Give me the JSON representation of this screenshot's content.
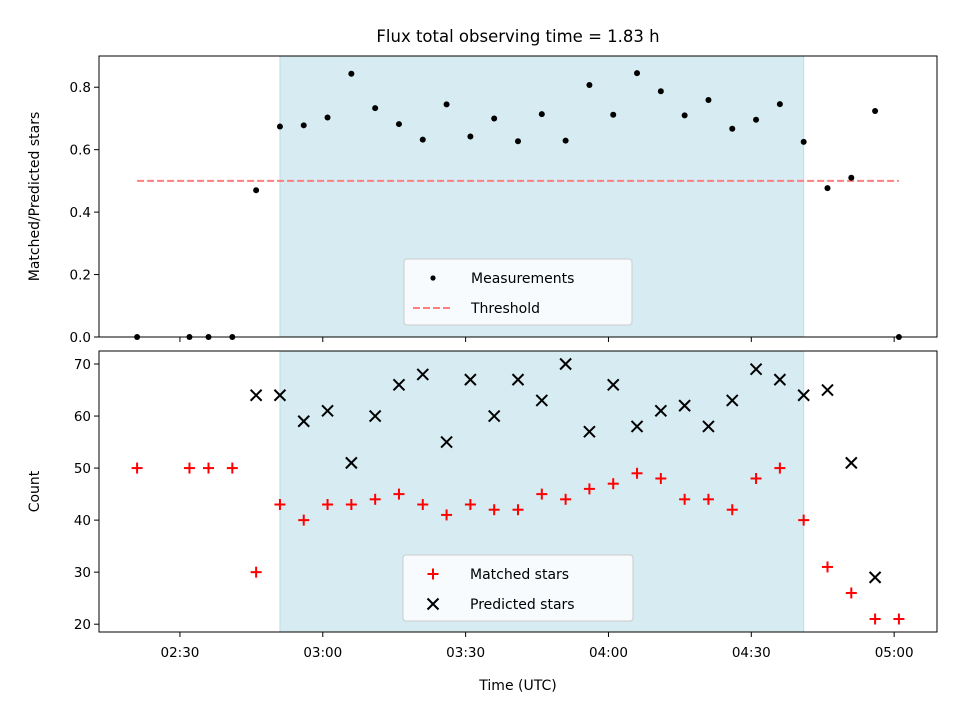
{
  "title": "Flux total observing time = 1.83 h",
  "xlabel": "Time (UTC)",
  "x_ticks": [
    "02:30",
    "03:00",
    "03:30",
    "04:00",
    "04:30",
    "05:00"
  ],
  "colors": {
    "shade": "#add8e6",
    "measurement": "#000000",
    "threshold": "#ff7f7f",
    "matched": "#ff0000",
    "predicted": "#000000"
  },
  "chart_data": [
    {
      "type": "scatter",
      "ylabel": "Matched/Predicted stars",
      "xlim": [
        "02:13",
        "05:09"
      ],
      "ylim": [
        0,
        0.9
      ],
      "y_ticks": [
        "0.0",
        "0.2",
        "0.4",
        "0.6",
        "0.8"
      ],
      "shaded_span": [
        "02:51",
        "04:41"
      ],
      "series": [
        {
          "name": "Measurements",
          "marker": "dot",
          "points": [
            {
              "x": "02:21",
              "y": 0.0
            },
            {
              "x": "02:32",
              "y": 0.0
            },
            {
              "x": "02:36",
              "y": 0.0
            },
            {
              "x": "02:41",
              "y": 0.0
            },
            {
              "x": "02:46",
              "y": 0.47
            },
            {
              "x": "02:51",
              "y": 0.674
            },
            {
              "x": "02:56",
              "y": 0.678
            },
            {
              "x": "03:01",
              "y": 0.703
            },
            {
              "x": "03:06",
              "y": 0.843
            },
            {
              "x": "03:11",
              "y": 0.733
            },
            {
              "x": "03:16",
              "y": 0.682
            },
            {
              "x": "03:21",
              "y": 0.632
            },
            {
              "x": "03:26",
              "y": 0.745
            },
            {
              "x": "03:31",
              "y": 0.642
            },
            {
              "x": "03:36",
              "y": 0.7
            },
            {
              "x": "03:41",
              "y": 0.627
            },
            {
              "x": "03:46",
              "y": 0.714
            },
            {
              "x": "03:51",
              "y": 0.629
            },
            {
              "x": "03:56",
              "y": 0.807
            },
            {
              "x": "04:01",
              "y": 0.712
            },
            {
              "x": "04:06",
              "y": 0.845
            },
            {
              "x": "04:11",
              "y": 0.787
            },
            {
              "x": "04:16",
              "y": 0.71
            },
            {
              "x": "04:21",
              "y": 0.759
            },
            {
              "x": "04:26",
              "y": 0.667
            },
            {
              "x": "04:31",
              "y": 0.696
            },
            {
              "x": "04:36",
              "y": 0.746
            },
            {
              "x": "04:41",
              "y": 0.625
            },
            {
              "x": "04:46",
              "y": 0.477
            },
            {
              "x": "04:51",
              "y": 0.51
            },
            {
              "x": "04:56",
              "y": 0.724
            },
            {
              "x": "05:01",
              "y": 0.0
            }
          ]
        },
        {
          "name": "Threshold",
          "marker": "dashed-line",
          "x_range": [
            "02:21",
            "05:01"
          ],
          "y": 0.5
        }
      ],
      "legend": "lower center"
    },
    {
      "type": "scatter",
      "ylabel": "Count",
      "xlim": [
        "02:13",
        "05:09"
      ],
      "ylim": [
        18.5,
        72.5
      ],
      "y_ticks": [
        "20",
        "30",
        "40",
        "50",
        "60",
        "70"
      ],
      "shaded_span": [
        "02:51",
        "04:41"
      ],
      "series": [
        {
          "name": "Matched stars",
          "marker": "plus",
          "points": [
            {
              "x": "02:21",
              "y": 50
            },
            {
              "x": "02:32",
              "y": 50
            },
            {
              "x": "02:36",
              "y": 50
            },
            {
              "x": "02:41",
              "y": 50
            },
            {
              "x": "02:46",
              "y": 30
            },
            {
              "x": "02:51",
              "y": 43
            },
            {
              "x": "02:56",
              "y": 40
            },
            {
              "x": "03:01",
              "y": 43
            },
            {
              "x": "03:06",
              "y": 43
            },
            {
              "x": "03:11",
              "y": 44
            },
            {
              "x": "03:16",
              "y": 45
            },
            {
              "x": "03:21",
              "y": 43
            },
            {
              "x": "03:26",
              "y": 41
            },
            {
              "x": "03:31",
              "y": 43
            },
            {
              "x": "03:36",
              "y": 42
            },
            {
              "x": "03:41",
              "y": 42
            },
            {
              "x": "03:46",
              "y": 45
            },
            {
              "x": "03:51",
              "y": 44
            },
            {
              "x": "03:56",
              "y": 46
            },
            {
              "x": "04:01",
              "y": 47
            },
            {
              "x": "04:06",
              "y": 49
            },
            {
              "x": "04:11",
              "y": 48
            },
            {
              "x": "04:16",
              "y": 44
            },
            {
              "x": "04:21",
              "y": 44
            },
            {
              "x": "04:26",
              "y": 42
            },
            {
              "x": "04:31",
              "y": 48
            },
            {
              "x": "04:36",
              "y": 50
            },
            {
              "x": "04:41",
              "y": 40
            },
            {
              "x": "04:46",
              "y": 31
            },
            {
              "x": "04:51",
              "y": 26
            },
            {
              "x": "04:56",
              "y": 21
            },
            {
              "x": "05:01",
              "y": 21
            }
          ]
        },
        {
          "name": "Predicted stars",
          "marker": "x",
          "points": [
            {
              "x": "02:46",
              "y": 64
            },
            {
              "x": "02:51",
              "y": 64
            },
            {
              "x": "02:56",
              "y": 59
            },
            {
              "x": "03:01",
              "y": 61
            },
            {
              "x": "03:06",
              "y": 51
            },
            {
              "x": "03:11",
              "y": 60
            },
            {
              "x": "03:16",
              "y": 66
            },
            {
              "x": "03:21",
              "y": 68
            },
            {
              "x": "03:26",
              "y": 55
            },
            {
              "x": "03:31",
              "y": 67
            },
            {
              "x": "03:36",
              "y": 60
            },
            {
              "x": "03:41",
              "y": 67
            },
            {
              "x": "03:46",
              "y": 63
            },
            {
              "x": "03:51",
              "y": 70
            },
            {
              "x": "03:56",
              "y": 57
            },
            {
              "x": "04:01",
              "y": 66
            },
            {
              "x": "04:06",
              "y": 58
            },
            {
              "x": "04:11",
              "y": 61
            },
            {
              "x": "04:16",
              "y": 62
            },
            {
              "x": "04:21",
              "y": 58
            },
            {
              "x": "04:26",
              "y": 63
            },
            {
              "x": "04:31",
              "y": 69
            },
            {
              "x": "04:36",
              "y": 67
            },
            {
              "x": "04:41",
              "y": 64
            },
            {
              "x": "04:46",
              "y": 65
            },
            {
              "x": "04:51",
              "y": 51
            },
            {
              "x": "04:56",
              "y": 29
            }
          ]
        }
      ],
      "legend": "lower center"
    }
  ]
}
